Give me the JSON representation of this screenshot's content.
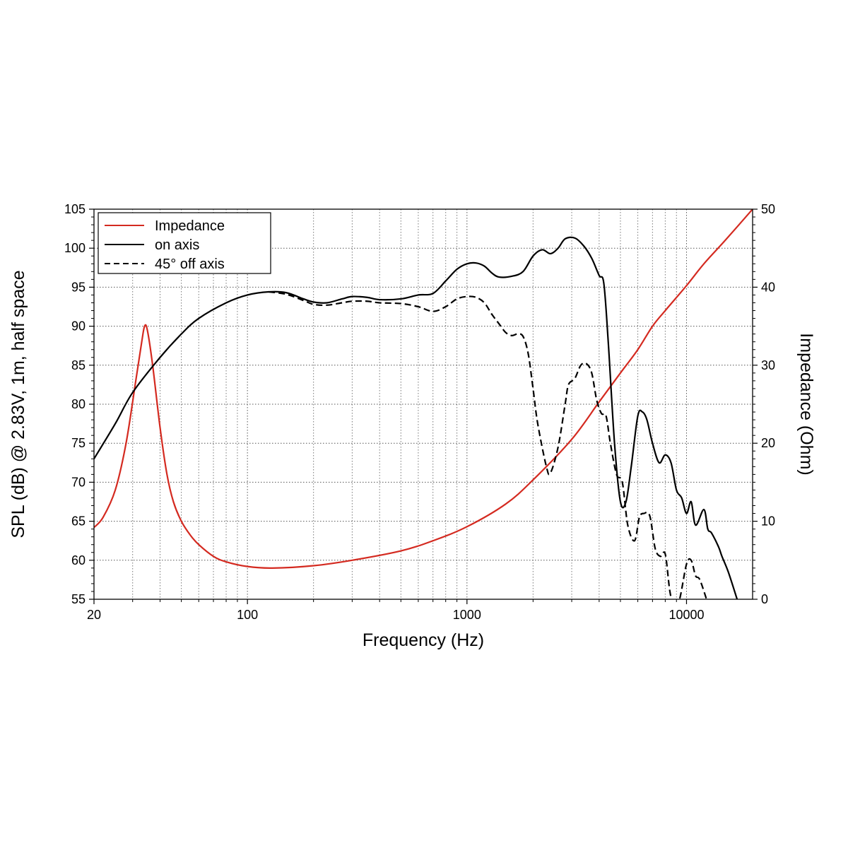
{
  "chart_data": {
    "type": "line",
    "xlabel": "Frequency (Hz)",
    "ylabel": "SPL (dB) @ 2.83V, 1m, half space",
    "y2label": "Impedance (Ohm)",
    "x_scale": "log",
    "xlim": [
      20,
      20000
    ],
    "ylim": [
      55,
      105
    ],
    "y2lim": [
      0,
      50
    ],
    "x_ticks": [
      20,
      100,
      1000,
      10000
    ],
    "x_tick_labels": [
      "20",
      "100",
      "1000",
      "10000"
    ],
    "y_ticks": [
      55,
      60,
      65,
      70,
      75,
      80,
      85,
      90,
      95,
      100,
      105
    ],
    "y_tick_labels": [
      "55",
      "60",
      "65",
      "70",
      "75",
      "80",
      "85",
      "90",
      "95",
      "100",
      "105"
    ],
    "y2_ticks": [
      0,
      10,
      20,
      30,
      40,
      50
    ],
    "y2_tick_labels": [
      "0",
      "10",
      "20",
      "30",
      "40",
      "50"
    ],
    "grid": true,
    "legend_position": "top-left",
    "series": [
      {
        "name": "Impedance",
        "axis": "right",
        "color": "#d42a20",
        "style": "solid",
        "points": [
          [
            20,
            9.2
          ],
          [
            22,
            10.5
          ],
          [
            25,
            14
          ],
          [
            28,
            20
          ],
          [
            31,
            28
          ],
          [
            33,
            33
          ],
          [
            34,
            35
          ],
          [
            35,
            34.5
          ],
          [
            37,
            30
          ],
          [
            40,
            22
          ],
          [
            43,
            16
          ],
          [
            46,
            12.5
          ],
          [
            50,
            10
          ],
          [
            55,
            8.2
          ],
          [
            60,
            7
          ],
          [
            70,
            5.5
          ],
          [
            80,
            4.8
          ],
          [
            100,
            4.2
          ],
          [
            130,
            4.0
          ],
          [
            200,
            4.3
          ],
          [
            300,
            5.0
          ],
          [
            500,
            6.2
          ],
          [
            700,
            7.5
          ],
          [
            1000,
            9.3
          ],
          [
            1500,
            12.2
          ],
          [
            2000,
            15.3
          ],
          [
            3000,
            20.5
          ],
          [
            4000,
            25.3
          ],
          [
            5000,
            29
          ],
          [
            6000,
            32
          ],
          [
            7000,
            35
          ],
          [
            8000,
            37
          ],
          [
            10000,
            40.2
          ],
          [
            12000,
            43
          ],
          [
            15000,
            46
          ],
          [
            20000,
            50
          ]
        ]
      },
      {
        "name": "on axis",
        "axis": "left",
        "color": "#000000",
        "style": "solid",
        "points": [
          [
            20,
            73
          ],
          [
            25,
            77.5
          ],
          [
            30,
            81.5
          ],
          [
            40,
            86
          ],
          [
            50,
            89
          ],
          [
            60,
            91
          ],
          [
            80,
            93
          ],
          [
            100,
            94
          ],
          [
            125,
            94.4
          ],
          [
            150,
            94.3
          ],
          [
            180,
            93.5
          ],
          [
            200,
            93.1
          ],
          [
            230,
            93.0
          ],
          [
            270,
            93.5
          ],
          [
            300,
            93.8
          ],
          [
            350,
            93.7
          ],
          [
            400,
            93.4
          ],
          [
            500,
            93.5
          ],
          [
            600,
            94.0
          ],
          [
            700,
            94.2
          ],
          [
            800,
            95.8
          ],
          [
            900,
            97.3
          ],
          [
            1000,
            98.0
          ],
          [
            1100,
            98.1
          ],
          [
            1200,
            97.7
          ],
          [
            1300,
            96.8
          ],
          [
            1400,
            96.3
          ],
          [
            1600,
            96.4
          ],
          [
            1800,
            97.0
          ],
          [
            2000,
            99.0
          ],
          [
            2200,
            99.8
          ],
          [
            2400,
            99.3
          ],
          [
            2600,
            100
          ],
          [
            2800,
            101.2
          ],
          [
            3100,
            101.3
          ],
          [
            3400,
            100.3
          ],
          [
            3700,
            98.7
          ],
          [
            4000,
            96.5
          ],
          [
            4200,
            95.5
          ],
          [
            4400,
            88
          ],
          [
            4700,
            75
          ],
          [
            5000,
            67.5
          ],
          [
            5300,
            67.5
          ],
          [
            5600,
            72
          ],
          [
            6000,
            78.5
          ],
          [
            6300,
            79
          ],
          [
            6600,
            78
          ],
          [
            7000,
            75
          ],
          [
            7500,
            72.5
          ],
          [
            8000,
            73.5
          ],
          [
            8500,
            72.5
          ],
          [
            9000,
            69
          ],
          [
            9500,
            68
          ],
          [
            10000,
            66
          ],
          [
            10500,
            67.5
          ],
          [
            11000,
            64.5
          ],
          [
            12000,
            66.5
          ],
          [
            12500,
            64
          ],
          [
            13000,
            63.5
          ],
          [
            14000,
            61.7
          ],
          [
            14500,
            60.5
          ],
          [
            15500,
            58.5
          ],
          [
            17000,
            55
          ]
        ]
      },
      {
        "name": "45° off axis",
        "axis": "left",
        "color": "#000000",
        "style": "dashed",
        "points": [
          [
            125,
            94.4
          ],
          [
            150,
            94.1
          ],
          [
            180,
            93.3
          ],
          [
            200,
            92.8
          ],
          [
            230,
            92.7
          ],
          [
            270,
            93.0
          ],
          [
            300,
            93.2
          ],
          [
            350,
            93.2
          ],
          [
            400,
            93.0
          ],
          [
            500,
            92.9
          ],
          [
            600,
            92.5
          ],
          [
            700,
            91.9
          ],
          [
            800,
            92.5
          ],
          [
            900,
            93.5
          ],
          [
            1000,
            93.8
          ],
          [
            1100,
            93.7
          ],
          [
            1200,
            93.0
          ],
          [
            1300,
            91.5
          ],
          [
            1400,
            90.3
          ],
          [
            1500,
            89.2
          ],
          [
            1600,
            88.8
          ],
          [
            1700,
            89.0
          ],
          [
            1800,
            88.7
          ],
          [
            1900,
            86.5
          ],
          [
            2000,
            82
          ],
          [
            2100,
            77.5
          ],
          [
            2300,
            72
          ],
          [
            2400,
            71.2
          ],
          [
            2600,
            74.5
          ],
          [
            2800,
            80
          ],
          [
            2900,
            82.5
          ],
          [
            3100,
            83.3
          ],
          [
            3300,
            85
          ],
          [
            3500,
            85.2
          ],
          [
            3700,
            84
          ],
          [
            3900,
            80.5
          ],
          [
            4100,
            78.8
          ],
          [
            4300,
            78.5
          ],
          [
            4500,
            75
          ],
          [
            4800,
            71
          ],
          [
            5100,
            70
          ],
          [
            5400,
            64.5
          ],
          [
            5800,
            62.5
          ],
          [
            6100,
            65.5
          ],
          [
            6400,
            66
          ],
          [
            6800,
            65.7
          ],
          [
            7200,
            61.5
          ],
          [
            7600,
            60.5
          ],
          [
            8000,
            60.8
          ],
          [
            8400,
            56
          ],
          [
            8800,
            54
          ],
          [
            9300,
            55
          ],
          [
            10000,
            59.5
          ],
          [
            10500,
            60
          ],
          [
            11000,
            58
          ],
          [
            11500,
            57.5
          ],
          [
            12500,
            54.5
          ]
        ]
      }
    ]
  }
}
